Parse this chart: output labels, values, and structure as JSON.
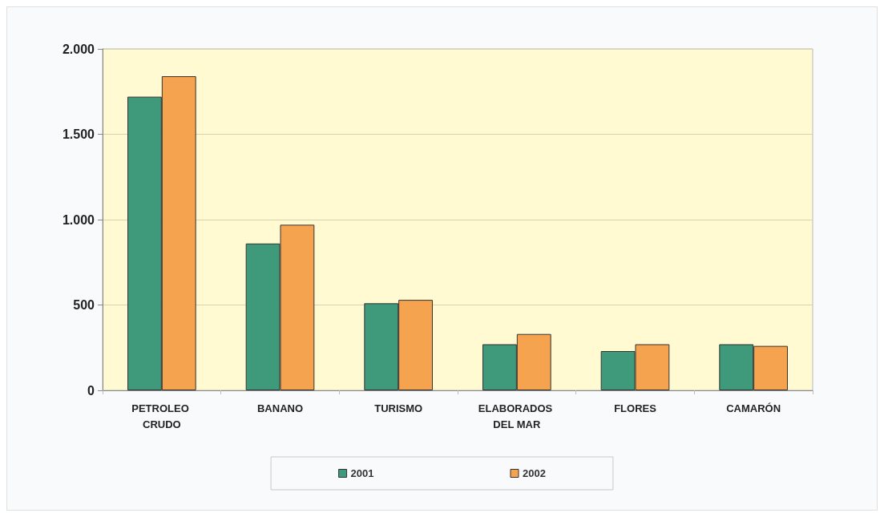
{
  "chart_data": {
    "type": "bar",
    "categories": [
      "PETROLEO CRUDO",
      "BANANO",
      "TURISMO",
      "ELABORADOS DEL MAR",
      "FLORES",
      "CAMARÓN"
    ],
    "series": [
      {
        "name": "2001",
        "color": "#3f9a7c",
        "values": [
          1720,
          860,
          510,
          270,
          230,
          270
        ]
      },
      {
        "name": "2002",
        "color": "#f6a34f",
        "values": [
          1840,
          970,
          530,
          330,
          270,
          260
        ]
      }
    ],
    "ylim": [
      0,
      2000
    ],
    "yticks": [
      0,
      500,
      {
        "value": 1000,
        "label": "1.000"
      },
      {
        "value": 1500,
        "label": "1.500"
      },
      {
        "value": 2000,
        "label": "2.000"
      }
    ],
    "grid": "y",
    "legend": "bottom"
  }
}
